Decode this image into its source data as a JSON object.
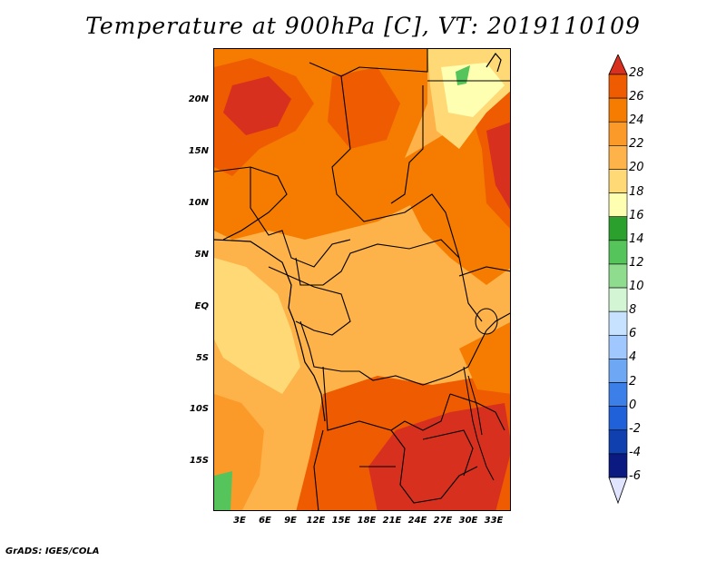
{
  "title": "Temperature at 900hPa [C], VT: 2019110109",
  "footer": "GrADS: IGES/COLA",
  "lat_labels": [
    "20N",
    "15N",
    "10N",
    "5N",
    "EQ",
    "5S",
    "10S",
    "15S"
  ],
  "lon_labels": [
    "3E",
    "6E",
    "9E",
    "12E",
    "15E",
    "18E",
    "21E",
    "24E",
    "27E",
    "30E",
    "33E"
  ],
  "colorbar": {
    "levels": [
      "28",
      "26",
      "24",
      "22",
      "20",
      "18",
      "16",
      "14",
      "12",
      "10",
      "8",
      "6",
      "4",
      "2",
      "0",
      "-2",
      "-4",
      "-6"
    ],
    "colors": [
      "#d7301f",
      "#ef5b00",
      "#f57c00",
      "#fb9a29",
      "#fdb34a",
      "#fed976",
      "#ffffb2",
      "#2ca02c",
      "#55c45a",
      "#8fdc8f",
      "#d3f5d3",
      "#c6e2ff",
      "#a0c8ff",
      "#6ea8f5",
      "#3d7fe8",
      "#2060d8",
      "#1040b0",
      "#0a1a80"
    ],
    "over_color": "#d7301f",
    "under_color": "#e0e4ff"
  },
  "chart_data": {
    "type": "heatmap",
    "variable": "Temperature at 900hPa",
    "units": "C",
    "valid_time": "2019110109",
    "lon_range": [
      0,
      35
    ],
    "lat_range": [
      -20,
      24
    ],
    "color_levels": [
      -6,
      -4,
      -2,
      0,
      2,
      4,
      6,
      8,
      10,
      12,
      14,
      16,
      18,
      20,
      22,
      24,
      26,
      28
    ]
  }
}
